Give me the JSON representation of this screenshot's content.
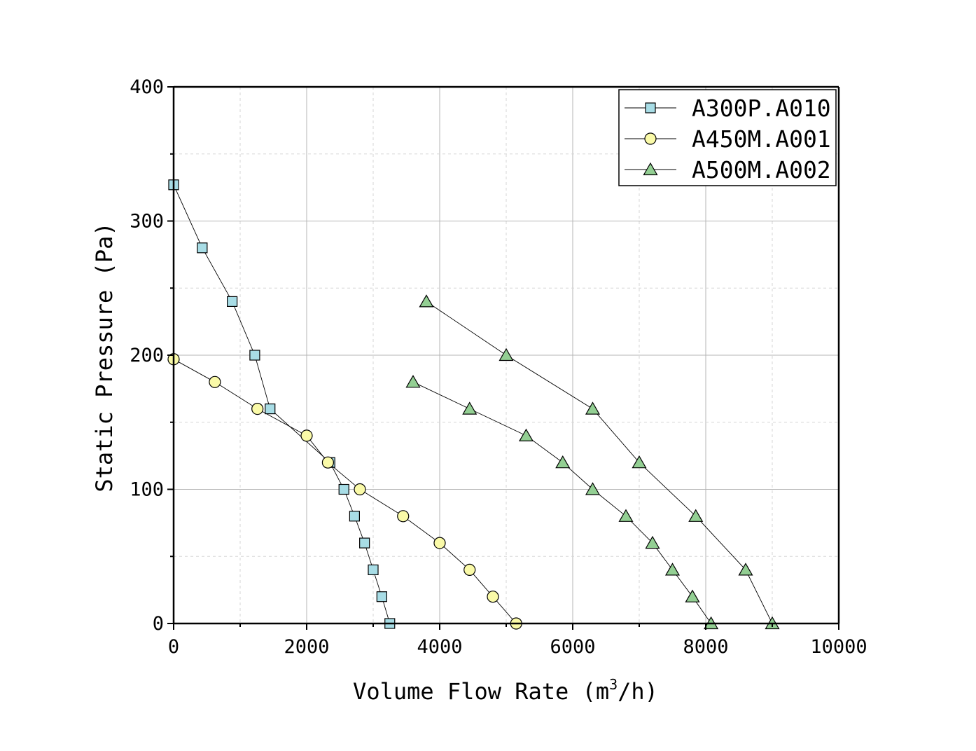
{
  "chart_data": {
    "type": "line",
    "title": "",
    "xlabel": "Volume Flow Rate (m3/h)",
    "xlabel_parts": {
      "pre": "Volume Flow Rate (m",
      "sup": "3",
      "post": "/h)"
    },
    "ylabel": "Static Pressure (Pa)",
    "xlim": [
      0,
      10000
    ],
    "ylim": [
      0,
      400
    ],
    "x_ticks": [
      "0",
      "2000",
      "4000",
      "6000",
      "8000",
      "10000"
    ],
    "y_ticks": [
      "0",
      "100",
      "200",
      "300",
      "400"
    ],
    "grid": true,
    "legend_position": "top-right",
    "series": [
      {
        "name": "A300P.A010",
        "marker": "square",
        "color": "#a8dde6",
        "x": [
          0,
          430,
          880,
          1220,
          1450,
          2350,
          2560,
          2720,
          2870,
          3000,
          3130,
          3250
        ],
        "y": [
          327,
          280,
          240,
          200,
          160,
          120,
          100,
          80,
          60,
          40,
          20,
          0
        ]
      },
      {
        "name": "A450M.A001",
        "marker": "circle",
        "color": "#fafaa8",
        "x": [
          0,
          620,
          1260,
          2000,
          2320,
          2800,
          3450,
          4000,
          4450,
          4800,
          5150
        ],
        "y": [
          197,
          180,
          160,
          140,
          120,
          100,
          80,
          60,
          40,
          20,
          0
        ]
      },
      {
        "name": "A500M.A002",
        "marker": "triangle",
        "color": "#93cf93",
        "x": [
          3800,
          5000,
          6300,
          7000,
          7850,
          8600,
          9000
        ],
        "y": [
          240,
          200,
          160,
          120,
          80,
          40,
          0
        ]
      },
      {
        "name": "",
        "legend": false,
        "marker": "triangle",
        "color": "#93cf93",
        "x": [
          3600,
          4450,
          5300,
          5850,
          6300,
          6800,
          7200,
          7500,
          7800,
          8080
        ],
        "y": [
          180,
          160,
          140,
          120,
          100,
          80,
          60,
          40,
          20,
          0
        ]
      }
    ]
  }
}
